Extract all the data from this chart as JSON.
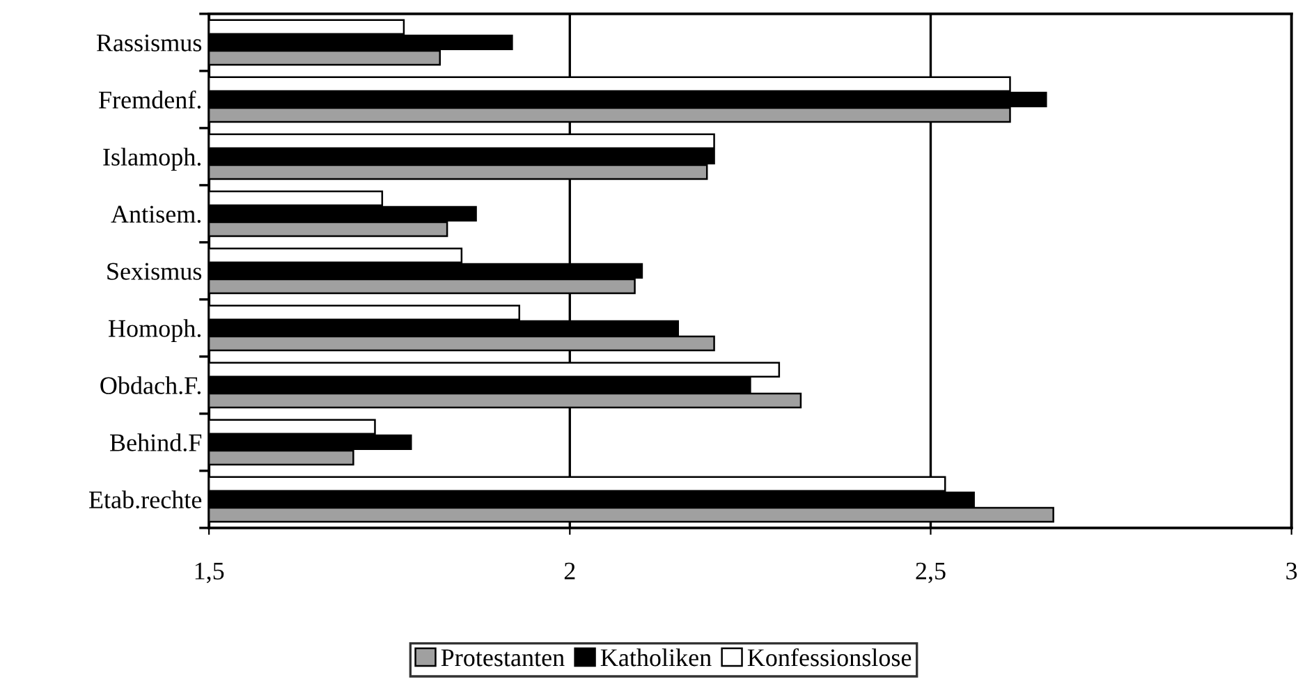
{
  "chart_data": {
    "type": "bar",
    "orientation": "horizontal",
    "categories": [
      "Rassismus",
      "Fremdenf.",
      "Islamoph.",
      "Antisem.",
      "Sexismus",
      "Homoph.",
      "Obdach.F.",
      "Behind.F",
      "Etab.rechte"
    ],
    "series": [
      {
        "name": "Konfessionslose",
        "color": "#ffffff",
        "values": [
          1.77,
          2.61,
          2.2,
          1.74,
          1.85,
          1.93,
          2.29,
          1.73,
          2.52
        ]
      },
      {
        "name": "Katholiken",
        "color": "#000000",
        "values": [
          1.92,
          2.66,
          2.2,
          1.87,
          2.1,
          2.15,
          2.25,
          1.78,
          2.56
        ]
      },
      {
        "name": "Protestanten",
        "color": "#a0a0a0",
        "values": [
          1.82,
          2.61,
          2.19,
          1.83,
          2.09,
          2.2,
          2.32,
          1.7,
          2.67
        ]
      }
    ],
    "xlim": [
      1.5,
      3
    ],
    "xticks": [
      {
        "value": 1.5,
        "label": "1,5"
      },
      2,
      {
        "value": 2.5,
        "label": "2,5"
      },
      3
    ],
    "grid": "x",
    "legend": "bottom"
  }
}
